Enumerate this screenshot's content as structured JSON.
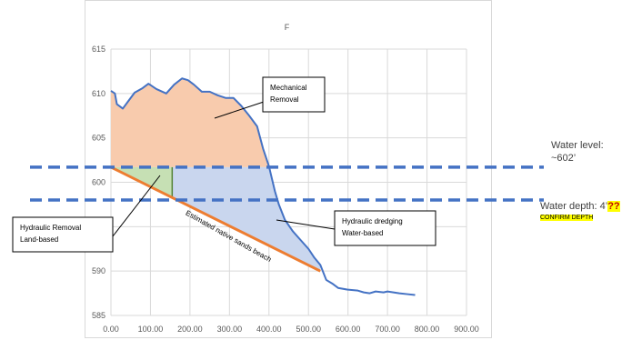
{
  "chart_data": {
    "type": "area",
    "title": "F",
    "xlabel": "",
    "ylabel": "",
    "xlim": [
      0,
      900
    ],
    "ylim": [
      585,
      615
    ],
    "x_ticks": [
      0,
      100,
      200,
      300,
      400,
      500,
      600,
      700,
      800,
      900
    ],
    "x_tick_labels": [
      "0.00",
      "100.00",
      "200.00",
      "300.00",
      "400.00",
      "500.00",
      "600.00",
      "700.00",
      "800.00",
      "900.00"
    ],
    "y_ticks": [
      585,
      590,
      595,
      600,
      605,
      610,
      615
    ],
    "y_tick_labels": [
      "585",
      "590",
      "595",
      "600",
      "605",
      "610",
      "615"
    ],
    "grid": true,
    "series": [
      {
        "color": "#4472c4",
        "points": [
          [
            0,
            610.3
          ],
          [
            10,
            610
          ],
          [
            15,
            608.8
          ],
          [
            30,
            608.3
          ],
          [
            45,
            609.2
          ],
          [
            60,
            610.1
          ],
          [
            80,
            610.6
          ],
          [
            95,
            611.1
          ],
          [
            115,
            610.5
          ],
          [
            140,
            610
          ],
          [
            160,
            611
          ],
          [
            180,
            611.7
          ],
          [
            195,
            611.5
          ],
          [
            210,
            611
          ],
          [
            230,
            610.2
          ],
          [
            250,
            610.2
          ],
          [
            270,
            609.8
          ],
          [
            290,
            609.5
          ],
          [
            310,
            609.5
          ],
          [
            330,
            608.6
          ],
          [
            350,
            607.5
          ],
          [
            370,
            606.3
          ],
          [
            385,
            603.8
          ],
          [
            400,
            601.8
          ],
          [
            415,
            599
          ],
          [
            425,
            597.5
          ],
          [
            440,
            595.8
          ],
          [
            460,
            594.5
          ],
          [
            480,
            593.5
          ],
          [
            500,
            592.5
          ],
          [
            515,
            591.5
          ],
          [
            530,
            590.7
          ],
          [
            545,
            589
          ],
          [
            560,
            588.6
          ],
          [
            575,
            588.1
          ],
          [
            600,
            587.9
          ],
          [
            625,
            587.8
          ],
          [
            640,
            587.6
          ],
          [
            655,
            587.5
          ],
          [
            670,
            587.7
          ],
          [
            690,
            587.6
          ],
          [
            700,
            587.7
          ],
          [
            715,
            587.6
          ],
          [
            730,
            587.5
          ],
          [
            750,
            587.4
          ],
          [
            770,
            587.3
          ]
        ]
      }
    ],
    "native_sands_line": [
      [
        0,
        601.7
      ],
      [
        530,
        590
      ]
    ],
    "water_level": 601.7,
    "water_depth_line": 598,
    "regions": [
      {
        "name": "Mechanical Removal",
        "color": "#f8cbad"
      },
      {
        "name": "Hydraulic Removal Land-based",
        "color": "#c6e0b4"
      },
      {
        "name": "Hydraulic dredging Water-based",
        "color": "#c9d6ee"
      }
    ],
    "annotations": {
      "mechanical": [
        "Mechanical",
        "Removal"
      ],
      "hydraulic_land": [
        "Hydraulic Removal",
        "Land-based"
      ],
      "hydraulic_water": [
        "Hydraulic dredging",
        "Water-based"
      ],
      "beach": "Estimated native sands beach"
    },
    "colors": {
      "profile": "#4472c4",
      "native_line": "#ed7d31",
      "water_lines": "#4472c4",
      "grid": "#d9d9d9"
    }
  },
  "side_notes": {
    "water_level_line1": "Water level:",
    "water_level_line2": "~602’",
    "water_depth_prefix": "Water depth: 4’",
    "water_depth_flag": "??",
    "confirm": "CONFIRM DEPTH"
  }
}
